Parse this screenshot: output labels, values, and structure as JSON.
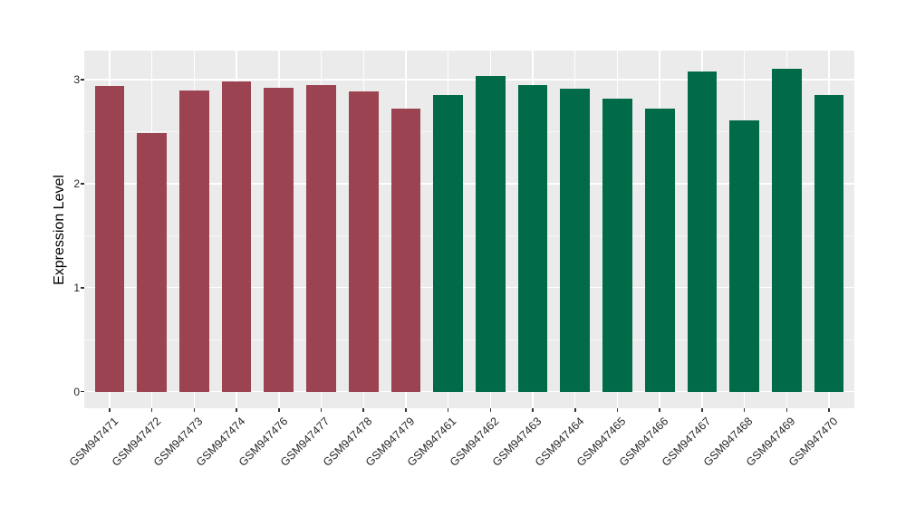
{
  "chart_data": {
    "type": "bar",
    "title": "",
    "xlabel": "",
    "ylabel": "Expression Level",
    "categories": [
      "GSM947471",
      "GSM947472",
      "GSM947473",
      "GSM947474",
      "GSM947476",
      "GSM947477",
      "GSM947478",
      "GSM947479",
      "GSM947461",
      "GSM947462",
      "GSM947463",
      "GSM947464",
      "GSM947465",
      "GSM947466",
      "GSM947467",
      "GSM947468",
      "GSM947469",
      "GSM947470"
    ],
    "values": [
      2.94,
      2.49,
      2.9,
      2.98,
      2.92,
      2.95,
      2.89,
      2.72,
      2.85,
      3.04,
      2.95,
      2.91,
      2.82,
      2.72,
      3.08,
      2.61,
      3.11,
      2.85
    ],
    "bar_groups": [
      "A",
      "A",
      "A",
      "A",
      "A",
      "A",
      "A",
      "A",
      "B",
      "B",
      "B",
      "B",
      "B",
      "B",
      "B",
      "B",
      "B",
      "B"
    ],
    "group_colors": {
      "A": "#9B4351",
      "B": "#016A48"
    },
    "yticks": [
      0,
      1,
      2,
      3
    ],
    "yticks_minor": [
      0.5,
      1.5,
      2.5
    ],
    "ylim": [
      -0.16,
      3.28
    ],
    "grid": true,
    "legend_position": "none",
    "panel_bg": "#EBEBEB",
    "grid_color": "#FFFFFF",
    "axis_text_color": "#262626"
  }
}
